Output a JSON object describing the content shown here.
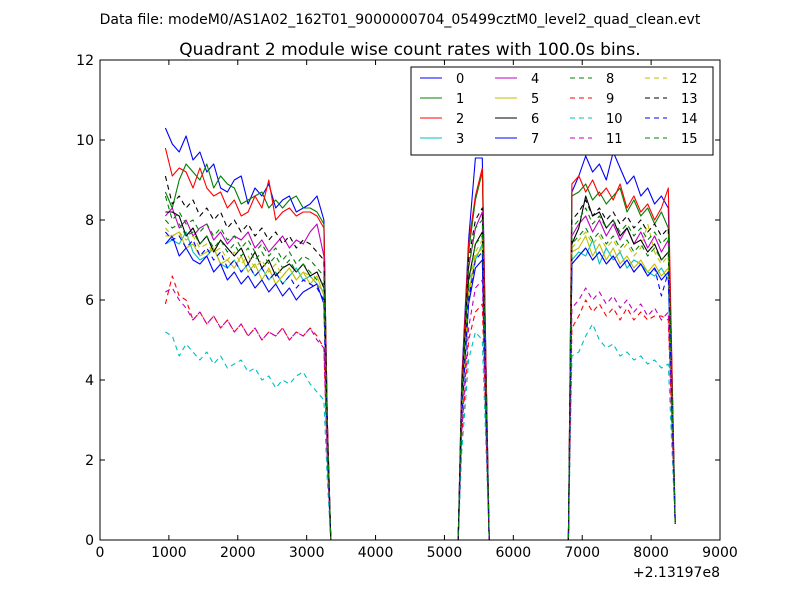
{
  "chart_data": {
    "type": "line",
    "suptitle": "Data file: modeM0/AS1A02_162T01_9000000704_05499cztM0_level2_quad_clean.evt",
    "title": "Quadrant 2 module wise count rates with 100.0s bins.",
    "xlabel": "",
    "ylabel": "",
    "x_offset_label": "+2.13197e8",
    "xlim": [
      0,
      9000
    ],
    "ylim": [
      0,
      12
    ],
    "xticks": [
      0,
      1000,
      2000,
      3000,
      4000,
      5000,
      6000,
      7000,
      8000,
      9000
    ],
    "yticks": [
      0,
      2,
      4,
      6,
      8,
      10,
      12
    ],
    "legend_position": "top-right",
    "x": [
      950,
      1050,
      1150,
      1250,
      1350,
      1450,
      1550,
      1650,
      1750,
      1850,
      1950,
      2050,
      2150,
      2250,
      2350,
      2450,
      2550,
      2650,
      2750,
      2850,
      2950,
      3050,
      3150,
      3250,
      3300,
      3350,
      3400,
      5200,
      5250,
      5350,
      5450,
      5550,
      5650,
      5700,
      5750,
      5800,
      6800,
      6850,
      6950,
      7050,
      7150,
      7250,
      7350,
      7450,
      7550,
      7650,
      7750,
      7850,
      7950,
      8050,
      8150,
      8250,
      8350
    ],
    "series": [
      {
        "name": "0",
        "color": "#0000ff",
        "dash": false,
        "values": [
          10.3,
          9.9,
          9.7,
          10.1,
          9.5,
          9.7,
          9.2,
          9.4,
          8.8,
          8.7,
          9.0,
          9.1,
          8.4,
          8.8,
          8.6,
          8.9,
          8.3,
          8.5,
          8.6,
          8.2,
          8.3,
          8.4,
          8.6,
          8.0,
          3.0,
          0,
          0,
          0,
          4.0,
          7.5,
          9.55,
          9.55,
          0,
          0,
          0,
          0,
          0,
          8.7,
          9.1,
          9.6,
          9.2,
          9.4,
          9.0,
          9.7,
          9.3,
          8.9,
          9.1,
          8.6,
          8.8,
          8.4,
          8.6,
          8.3,
          0.5
        ]
      },
      {
        "name": "1",
        "color": "#008000",
        "dash": false,
        "values": [
          8.7,
          8.3,
          9.0,
          9.4,
          9.2,
          9.0,
          9.4,
          8.8,
          9.1,
          8.9,
          8.8,
          8.4,
          8.5,
          8.6,
          8.7,
          8.3,
          8.5,
          8.3,
          8.5,
          8.6,
          8.3,
          8.3,
          8.2,
          7.9,
          3.0,
          0,
          0,
          0,
          3.7,
          7.2,
          8.5,
          9.2,
          0,
          0,
          0,
          0,
          0,
          8.6,
          8.7,
          8.9,
          8.5,
          8.7,
          8.4,
          8.6,
          8.8,
          8.2,
          8.5,
          8.1,
          8.3,
          7.9,
          8.2,
          7.8,
          0.4
        ]
      },
      {
        "name": "2",
        "color": "#ff0000",
        "dash": false,
        "values": [
          9.8,
          9.1,
          9.3,
          9.2,
          8.8,
          9.3,
          8.8,
          8.6,
          8.7,
          8.3,
          8.5,
          8.1,
          8.2,
          8.6,
          8.3,
          9.0,
          8.0,
          8.2,
          8.3,
          8.1,
          8.2,
          8.2,
          8.1,
          7.8,
          3.0,
          0,
          0,
          0,
          3.8,
          7.4,
          8.6,
          9.3,
          0,
          0,
          0,
          0,
          0,
          8.9,
          9.1,
          8.7,
          9.0,
          8.6,
          8.8,
          8.5,
          8.9,
          8.3,
          8.6,
          8.2,
          8.4,
          8.0,
          8.3,
          8.8,
          0.4
        ]
      },
      {
        "name": "3",
        "color": "#00bfbf",
        "dash": false,
        "values": [
          7.4,
          7.5,
          7.4,
          7.7,
          7.2,
          7.0,
          7.1,
          7.3,
          6.9,
          6.8,
          7.0,
          6.7,
          6.9,
          6.6,
          6.8,
          6.5,
          6.7,
          6.4,
          6.6,
          6.8,
          6.5,
          6.6,
          6.4,
          6.2,
          2.5,
          0,
          0,
          0,
          3.3,
          6.2,
          7.0,
          7.4,
          0,
          0,
          0,
          0,
          0,
          7.0,
          7.2,
          7.1,
          7.5,
          6.9,
          7.3,
          7.0,
          7.2,
          6.8,
          7.0,
          6.9,
          6.7,
          6.6,
          6.8,
          6.5,
          0.4
        ]
      },
      {
        "name": "4",
        "color": "#bf00bf",
        "dash": false,
        "values": [
          8.1,
          8.3,
          7.8,
          8.0,
          7.6,
          7.8,
          7.9,
          7.5,
          7.7,
          7.4,
          7.6,
          7.5,
          7.7,
          7.3,
          7.5,
          7.2,
          7.4,
          7.6,
          7.3,
          7.5,
          7.4,
          7.7,
          7.9,
          7.1,
          2.8,
          0,
          0,
          0,
          3.5,
          6.8,
          7.8,
          8.2,
          0,
          0,
          0,
          0,
          0,
          7.6,
          7.9,
          8.1,
          7.7,
          8.0,
          7.6,
          7.9,
          7.5,
          7.8,
          7.4,
          7.7,
          7.3,
          7.6,
          7.2,
          7.5,
          0.4
        ]
      },
      {
        "name": "5",
        "color": "#bfbf00",
        "dash": false,
        "values": [
          7.6,
          7.6,
          7.7,
          7.3,
          7.4,
          7.1,
          7.2,
          7.3,
          6.9,
          7.0,
          6.8,
          7.1,
          6.7,
          6.9,
          6.5,
          6.8,
          6.4,
          6.6,
          6.8,
          6.5,
          6.7,
          6.4,
          6.6,
          6.1,
          2.5,
          0,
          0,
          0,
          3.2,
          6.1,
          7.1,
          7.3,
          0,
          0,
          0,
          0,
          0,
          7.2,
          7.3,
          7.6,
          7.1,
          7.4,
          7.0,
          7.3,
          6.9,
          7.1,
          6.8,
          7.0,
          6.7,
          6.9,
          6.6,
          6.8,
          0.4
        ]
      },
      {
        "name": "6",
        "color": "#000000",
        "dash": false,
        "values": [
          8.2,
          8.2,
          8.1,
          7.6,
          7.8,
          7.4,
          7.6,
          7.2,
          7.5,
          7.3,
          7.1,
          7.3,
          6.9,
          7.2,
          6.8,
          7.0,
          6.6,
          6.8,
          6.9,
          6.7,
          6.9,
          6.6,
          6.7,
          6.3,
          2.6,
          0,
          0,
          0,
          3.4,
          6.5,
          7.4,
          7.7,
          0,
          0,
          0,
          0,
          0,
          7.4,
          7.8,
          8.6,
          8.1,
          8.2,
          7.8,
          8.0,
          7.6,
          7.8,
          7.4,
          7.5,
          7.2,
          7.4,
          7.0,
          7.2,
          0.4
        ]
      },
      {
        "name": "7",
        "color": "#0000ff",
        "dash": false,
        "values": [
          7.4,
          7.6,
          7.1,
          7.3,
          7.0,
          6.9,
          7.1,
          6.7,
          6.9,
          6.5,
          6.7,
          6.4,
          6.6,
          6.3,
          6.5,
          6.2,
          6.4,
          6.1,
          6.3,
          6.0,
          6.2,
          6.3,
          6.4,
          5.9,
          2.4,
          0,
          0,
          0,
          3.1,
          5.9,
          6.8,
          7.0,
          0,
          0,
          0,
          0,
          0,
          6.9,
          7.1,
          7.3,
          7.0,
          7.2,
          6.9,
          7.1,
          6.8,
          7.0,
          6.7,
          6.9,
          6.6,
          6.8,
          6.5,
          6.7,
          0.4
        ]
      },
      {
        "name": "8",
        "color": "#008000",
        "dash": true,
        "values": [
          8.0,
          7.8,
          7.9,
          7.6,
          7.7,
          7.4,
          7.6,
          7.3,
          7.5,
          7.2,
          7.4,
          7.1,
          7.3,
          7.0,
          7.2,
          6.9,
          7.1,
          6.8,
          7.0,
          6.7,
          6.9,
          6.7,
          6.5,
          6.4,
          2.6,
          0,
          0,
          0,
          3.3,
          6.4,
          7.4,
          7.6,
          0,
          0,
          0,
          0,
          0,
          7.4,
          7.6,
          7.8,
          7.5,
          7.7,
          7.4,
          7.6,
          7.3,
          7.5,
          7.2,
          7.4,
          7.1,
          7.3,
          7.0,
          7.2,
          0.4
        ]
      },
      {
        "name": "9",
        "color": "#ff0000",
        "dash": true,
        "values": [
          5.9,
          6.6,
          6.1,
          6.0,
          5.5,
          5.7,
          5.4,
          5.6,
          5.3,
          5.5,
          5.2,
          5.4,
          5.1,
          5.3,
          5.0,
          5.2,
          5.1,
          5.3,
          5.0,
          5.2,
          5.1,
          5.3,
          5.1,
          4.8,
          2.0,
          0,
          0,
          0,
          2.6,
          5.0,
          5.7,
          5.9,
          0,
          0,
          0,
          0,
          0,
          5.3,
          5.6,
          6.0,
          5.7,
          5.9,
          5.6,
          5.8,
          5.5,
          5.8,
          5.5,
          5.7,
          5.5,
          5.6,
          5.6,
          5.5,
          0.4
        ]
      },
      {
        "name": "10",
        "color": "#00bfbf",
        "dash": true,
        "values": [
          5.2,
          5.1,
          4.6,
          4.9,
          4.7,
          4.5,
          4.7,
          4.4,
          4.6,
          4.3,
          4.4,
          4.5,
          4.2,
          4.3,
          4.0,
          4.1,
          3.8,
          4.0,
          3.9,
          4.1,
          4.2,
          3.9,
          3.7,
          3.5,
          1.5,
          0,
          0,
          0,
          2.2,
          4.5,
          5.2,
          5.0,
          0,
          0,
          0,
          0,
          0,
          4.6,
          4.7,
          5.1,
          5.4,
          5.0,
          4.8,
          4.9,
          4.6,
          4.7,
          4.5,
          4.6,
          4.4,
          4.5,
          4.3,
          4.4,
          0.4
        ]
      },
      {
        "name": "11",
        "color": "#bf00bf",
        "dash": true,
        "values": [
          6.2,
          6.3,
          6.0,
          5.8,
          5.5,
          5.7,
          5.4,
          5.6,
          5.3,
          5.5,
          5.2,
          5.4,
          5.1,
          5.3,
          5.0,
          5.2,
          5.1,
          5.3,
          5.0,
          5.2,
          5.1,
          5.3,
          5.0,
          4.8,
          2.0,
          0,
          0,
          0,
          2.7,
          5.3,
          6.3,
          6.5,
          0,
          0,
          0,
          0,
          0,
          5.8,
          6.0,
          6.3,
          6.0,
          6.2,
          5.9,
          6.1,
          5.8,
          6.0,
          5.7,
          5.9,
          5.6,
          5.8,
          5.5,
          5.7,
          0.4
        ]
      },
      {
        "name": "12",
        "color": "#bfbf00",
        "dash": true,
        "values": [
          7.8,
          7.6,
          7.7,
          7.5,
          7.6,
          7.3,
          7.4,
          7.2,
          7.3,
          7.0,
          7.2,
          6.9,
          7.1,
          6.8,
          7.0,
          6.7,
          6.9,
          6.6,
          6.8,
          6.5,
          6.7,
          6.6,
          6.4,
          6.2,
          2.5,
          0,
          0,
          0,
          3.2,
          6.2,
          7.2,
          7.5,
          0,
          0,
          0,
          0,
          0,
          7.3,
          7.5,
          7.7,
          7.4,
          7.6,
          7.3,
          7.5,
          7.2,
          7.4,
          7.1,
          7.3,
          7.9,
          7.2,
          6.9,
          7.1,
          0.4
        ]
      },
      {
        "name": "13",
        "color": "#000000",
        "dash": true,
        "values": [
          9.1,
          8.4,
          8.6,
          8.3,
          8.5,
          8.1,
          8.3,
          8.0,
          8.2,
          7.8,
          8.0,
          7.7,
          7.9,
          7.6,
          7.8,
          7.5,
          7.7,
          7.4,
          7.6,
          7.3,
          7.5,
          7.4,
          7.2,
          7.0,
          2.8,
          0,
          0,
          0,
          3.6,
          7.0,
          8.0,
          8.3,
          0,
          0,
          0,
          0,
          0,
          8.0,
          8.2,
          8.5,
          8.1,
          8.3,
          8.0,
          8.2,
          7.9,
          8.1,
          7.8,
          8.0,
          7.7,
          7.9,
          7.6,
          7.8,
          0.4
        ]
      },
      {
        "name": "14",
        "color": "#0000ff",
        "dash": true,
        "values": [
          7.7,
          7.5,
          7.6,
          7.3,
          7.5,
          7.1,
          7.3,
          7.0,
          7.2,
          6.8,
          7.0,
          6.7,
          6.9,
          6.6,
          6.8,
          6.5,
          6.7,
          6.4,
          6.6,
          6.3,
          6.5,
          6.4,
          6.3,
          6.0,
          2.4,
          0,
          0,
          0,
          3.1,
          6.0,
          7.0,
          7.2,
          0,
          0,
          0,
          0,
          0,
          6.9,
          7.1,
          7.3,
          7.0,
          7.2,
          6.9,
          7.1,
          6.8,
          7.0,
          6.7,
          6.9,
          6.6,
          6.8,
          6.1,
          6.7,
          0.4
        ]
      },
      {
        "name": "15",
        "color": "#008000",
        "dash": true,
        "values": [
          8.6,
          8.0,
          8.2,
          7.9,
          8.0,
          7.7,
          7.9,
          7.6,
          7.8,
          7.5,
          7.6,
          7.3,
          7.5,
          7.2,
          7.4,
          7.1,
          7.3,
          7.0,
          7.2,
          6.9,
          7.1,
          7.0,
          6.8,
          6.6,
          2.7,
          0,
          0,
          0,
          3.5,
          6.8,
          7.8,
          8.0,
          0,
          0,
          0,
          0,
          0,
          7.8,
          8.0,
          8.3,
          7.9,
          8.1,
          7.8,
          8.0,
          7.7,
          7.9,
          7.6,
          7.8,
          7.5,
          7.7,
          7.4,
          7.6,
          0.4
        ]
      }
    ]
  }
}
